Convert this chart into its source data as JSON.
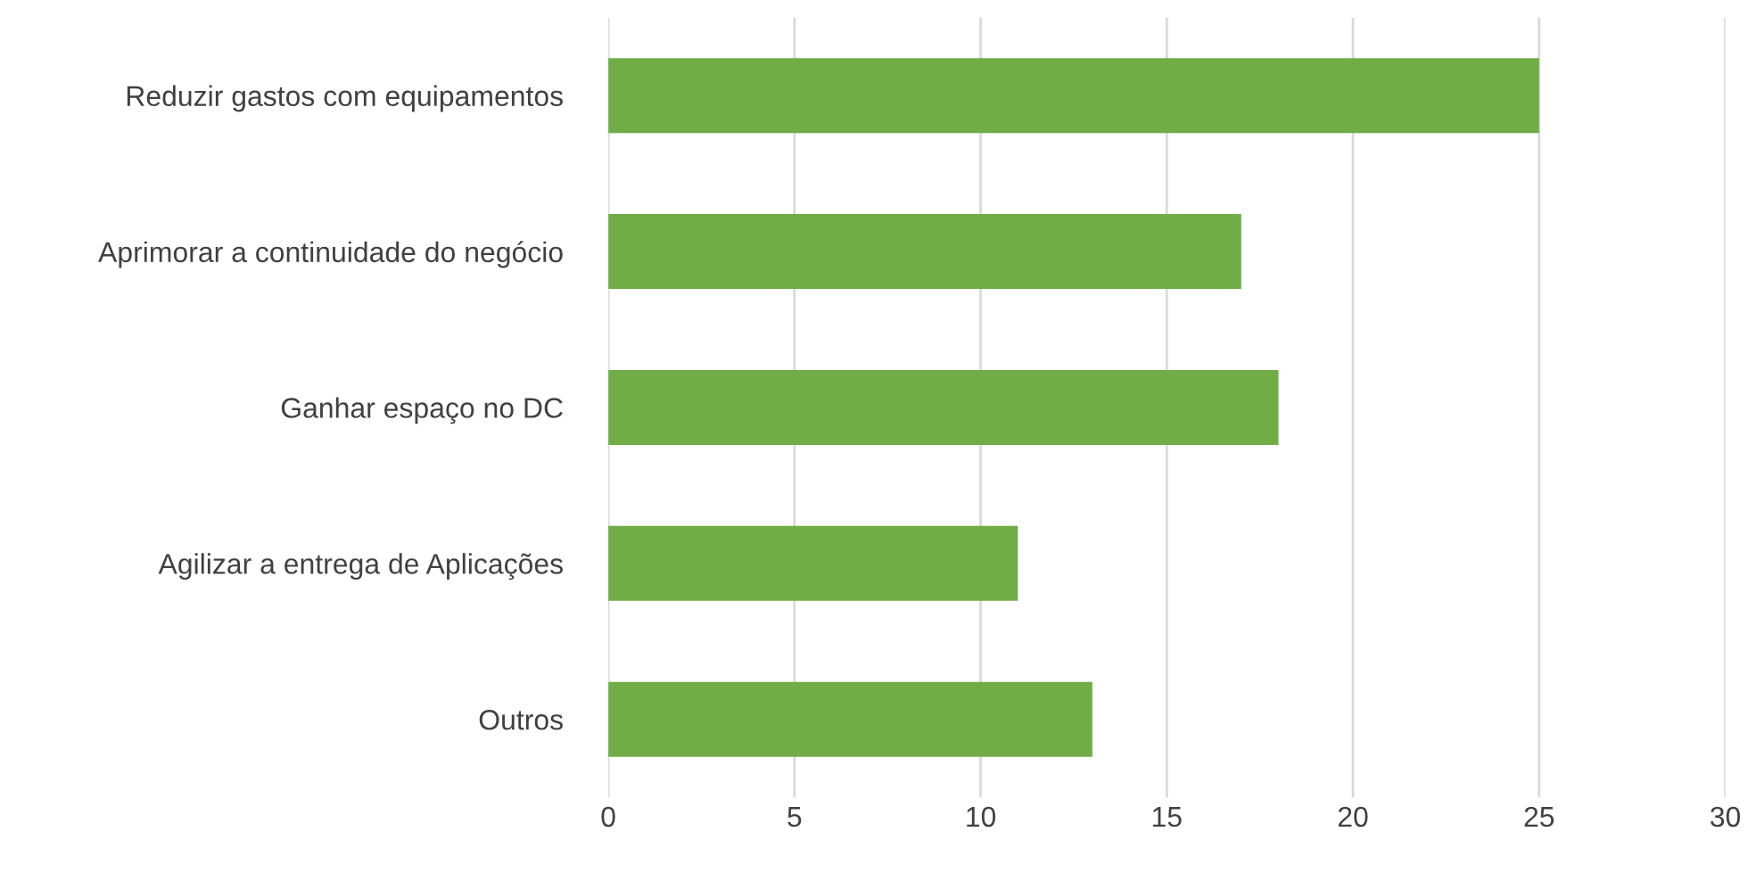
{
  "chart_data": {
    "type": "bar",
    "orientation": "horizontal",
    "categories": [
      "Reduzir gastos com equipamentos",
      "Aprimorar a continuidade do negócio",
      "Ganhar espaço no DC",
      "Agilizar a entrega de Aplicações",
      "Outros"
    ],
    "values": [
      25,
      17,
      18,
      11,
      13
    ],
    "color": "#70ad47",
    "xlim": [
      0,
      30
    ],
    "xticks": [
      0,
      5,
      10,
      15,
      20,
      25,
      30
    ],
    "grid": "x"
  }
}
